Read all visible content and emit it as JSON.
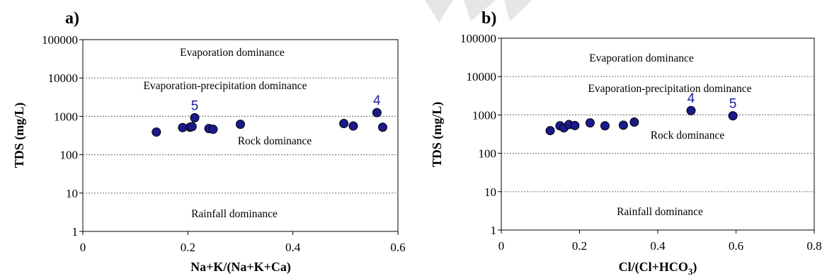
{
  "colors": {
    "marker_fill": "#1a1a8c",
    "marker_stroke": "#000000",
    "gridline": "#7f7f7f",
    "annotation": "#1f1f9e"
  },
  "chart_data": [
    {
      "type": "scatter",
      "panel_label": "a)",
      "xlabel": "Na+K/(Na+K+Ca)",
      "ylabel": "TDS (mg/L)",
      "xlim": [
        0,
        0.6
      ],
      "ylim": [
        1,
        100000
      ],
      "yscale": "log",
      "grid": "horizontal dotted at 10, 100, 1000, 10000",
      "x_ticks": [
        "0",
        "0.2",
        "0.4",
        "0.6"
      ],
      "y_ticks": [
        "1",
        "10",
        "100",
        "1000",
        "10000",
        "100000"
      ],
      "regions": [
        "Evaporation dominance",
        "Evaporation-precipitation dominance",
        "Rock dominance",
        "Rainfall dominance"
      ],
      "annotations": [
        {
          "text": "5",
          "x": 0.213,
          "y": 920
        },
        {
          "text": "4",
          "x": 0.56,
          "y": 1250
        }
      ],
      "points": [
        {
          "x": 0.14,
          "y": 390
        },
        {
          "x": 0.19,
          "y": 510
        },
        {
          "x": 0.204,
          "y": 520
        },
        {
          "x": 0.208,
          "y": 540
        },
        {
          "x": 0.213,
          "y": 920
        },
        {
          "x": 0.24,
          "y": 480
        },
        {
          "x": 0.248,
          "y": 460
        },
        {
          "x": 0.3,
          "y": 620
        },
        {
          "x": 0.497,
          "y": 650
        },
        {
          "x": 0.515,
          "y": 560
        },
        {
          "x": 0.56,
          "y": 1250
        },
        {
          "x": 0.571,
          "y": 520
        }
      ]
    },
    {
      "type": "scatter",
      "panel_label": "b)",
      "xlabel_main": "Cl/(Cl+HCO",
      "xlabel_sub": "3",
      "xlabel_end": ")",
      "ylabel": "TDS (mg/L)",
      "xlim": [
        0,
        0.8
      ],
      "ylim": [
        1,
        100000
      ],
      "yscale": "log",
      "grid": "horizontal dotted at 10, 100, 1000, 10000",
      "x_ticks": [
        "0",
        "0.2",
        "0.4",
        "0.6",
        "0.8"
      ],
      "y_ticks": [
        "1",
        "10",
        "100",
        "1000",
        "10000",
        "100000"
      ],
      "regions": [
        "Evaporation dominance",
        "Evaporation-precipitation dominance",
        "Rock dominance",
        "Rainfall dominance"
      ],
      "annotations": [
        {
          "text": "4",
          "x": 0.485,
          "y": 1300
        },
        {
          "text": "5",
          "x": 0.592,
          "y": 950
        }
      ],
      "points": [
        {
          "x": 0.125,
          "y": 390
        },
        {
          "x": 0.15,
          "y": 520
        },
        {
          "x": 0.16,
          "y": 460
        },
        {
          "x": 0.173,
          "y": 560
        },
        {
          "x": 0.188,
          "y": 530
        },
        {
          "x": 0.227,
          "y": 620
        },
        {
          "x": 0.265,
          "y": 520
        },
        {
          "x": 0.312,
          "y": 540
        },
        {
          "x": 0.34,
          "y": 650
        },
        {
          "x": 0.485,
          "y": 1300
        },
        {
          "x": 0.592,
          "y": 950
        }
      ]
    }
  ]
}
